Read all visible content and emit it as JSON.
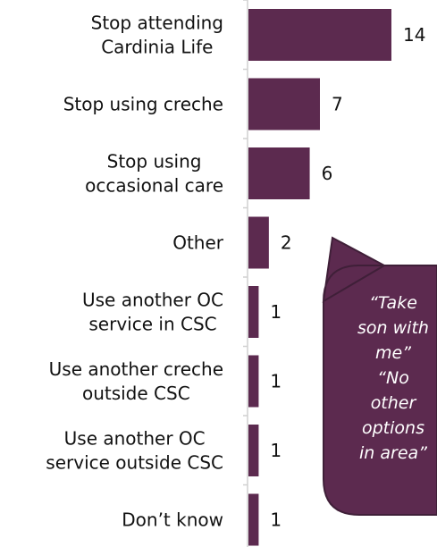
{
  "chart_data": {
    "type": "bar",
    "orientation": "horizontal",
    "categories": [
      [
        "Stop attending",
        "Cardinia Life"
      ],
      [
        "Stop using creche"
      ],
      [
        "Stop using",
        "occasional care"
      ],
      [
        "Other"
      ],
      [
        "Use another OC",
        "service in CSC"
      ],
      [
        "Use another creche",
        "outside CSC"
      ],
      [
        "Use another OC",
        "service outside CSC"
      ],
      [
        "Don’t know"
      ]
    ],
    "values": [
      14,
      7,
      6,
      2,
      1,
      1,
      1,
      1
    ],
    "data_labels": [
      "14",
      "7",
      "6",
      "2",
      "1",
      "1",
      "1",
      "1"
    ],
    "title": "",
    "xlabel": "",
    "ylabel": "",
    "xlim": [
      0,
      14
    ],
    "grid": false,
    "legend": "none",
    "bar_color": "#5c2a4f",
    "axis_color": "#d0d0d0"
  },
  "callout": {
    "lines": [
      "“Take",
      "son with",
      "me”",
      "“No",
      "other",
      "options",
      "in area”"
    ],
    "fill_color": "#5c2a4f",
    "border_color": "#3f1f38",
    "text_color": "#ffffff"
  }
}
